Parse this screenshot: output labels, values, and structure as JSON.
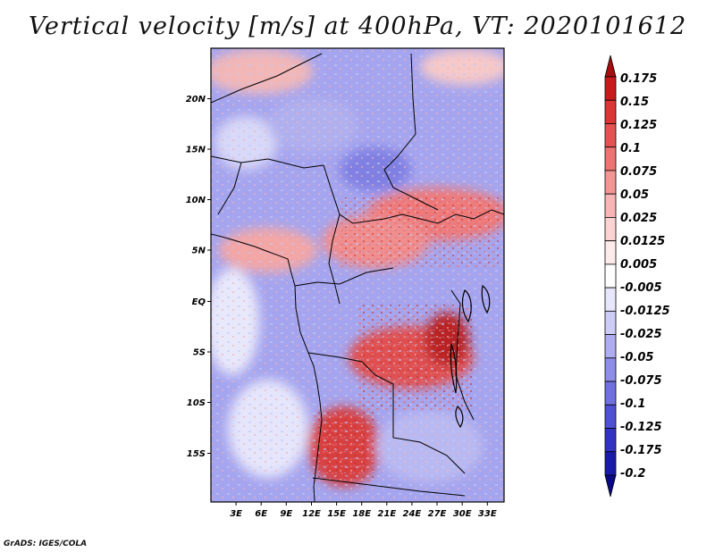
{
  "title": "Vertical velocity [m/s] at 400hPa, VT: 2020101612",
  "credit": "GrADS: IGES/COLA",
  "map": {
    "lon_range": [
      0,
      35
    ],
    "lat_range": [
      -20,
      25
    ],
    "lon_ticks": [
      "3E",
      "6E",
      "9E",
      "12E",
      "15E",
      "18E",
      "21E",
      "24E",
      "27E",
      "30E",
      "33E"
    ],
    "lat_ticks": [
      "20N",
      "15N",
      "10N",
      "5N",
      "EQ",
      "5S",
      "10S",
      "15S"
    ]
  },
  "colorbar": {
    "levels": [
      "0.175",
      "0.15",
      "0.125",
      "0.1",
      "0.075",
      "0.05",
      "0.025",
      "0.0125",
      "0.005",
      "-0.005",
      "-0.0125",
      "-0.025",
      "-0.05",
      "-0.075",
      "-0.1",
      "-0.125",
      "-0.175",
      "-0.2"
    ],
    "colors": [
      "#a50e0e",
      "#c81a1a",
      "#dc3535",
      "#e55252",
      "#ee7373",
      "#f49595",
      "#f8b5b5",
      "#fbd3d3",
      "#fdeaea",
      "#ffffff",
      "#e7e7fb",
      "#ccccf6",
      "#adadf0",
      "#8e8ee8",
      "#7070df",
      "#5050d3",
      "#3232c3",
      "#1a1aa8",
      "#0a0a86"
    ]
  }
}
